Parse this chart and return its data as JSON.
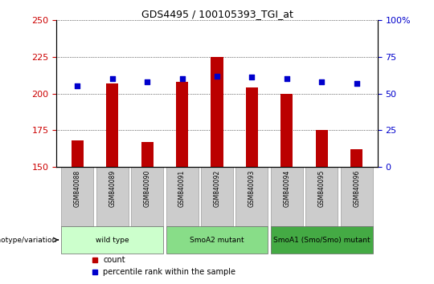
{
  "title": "GDS4495 / 100105393_TGI_at",
  "samples": [
    "GSM840088",
    "GSM840089",
    "GSM840090",
    "GSM840091",
    "GSM840092",
    "GSM840093",
    "GSM840094",
    "GSM840095",
    "GSM840096"
  ],
  "counts": [
    168,
    207,
    167,
    208,
    225,
    204,
    200,
    175,
    162
  ],
  "percentiles": [
    55,
    60,
    58,
    60,
    62,
    61,
    60,
    58,
    57
  ],
  "ylim_left": [
    150,
    250
  ],
  "ylim_right": [
    0,
    100
  ],
  "yticks_left": [
    150,
    175,
    200,
    225,
    250
  ],
  "yticks_right": [
    0,
    25,
    50,
    75,
    100
  ],
  "bar_color": "#bb0000",
  "dot_color": "#0000cc",
  "left_tick_color": "#cc0000",
  "right_tick_color": "#0000cc",
  "groups": [
    {
      "label": "wild type",
      "start": 0,
      "end": 3,
      "color": "#ccffcc"
    },
    {
      "label": "SmoA2 mutant",
      "start": 3,
      "end": 6,
      "color": "#88dd88"
    },
    {
      "label": "SmoA1 (Smo/Smo) mutant",
      "start": 6,
      "end": 9,
      "color": "#44aa44"
    }
  ],
  "genotype_label": "genotype/variation",
  "sample_box_color": "#cccccc",
  "fig_bg": "#ffffff"
}
